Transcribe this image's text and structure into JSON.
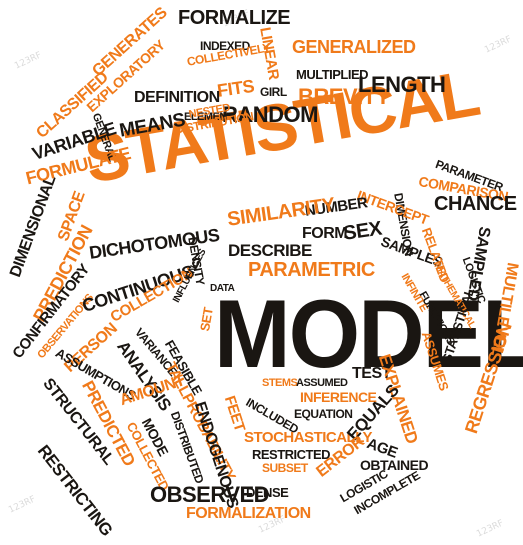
{
  "words": {
    "statistical": "STATISTICAL",
    "model": "MODEL",
    "formalize": "FORMALIZE",
    "indexed": "INDEXED",
    "collectively": "COLLECTIVELY",
    "generalized": "GENERALIZED",
    "multiplied": "MULTIPLIED",
    "linear": "LINEAR",
    "girl": "GIRL",
    "fits": "FITS",
    "length": "LENGTH",
    "brevity": "BREVITY",
    "random": "RANDOM",
    "definition": "DEFINITION",
    "element": "ELEMENT",
    "distribution": "DISTRIBUTION",
    "means": "MEANS",
    "nested": "NESTED",
    "general": "GENERAL",
    "classified": "CLASSIFIED",
    "generates": "GENERATES",
    "exploratory": "EXPLORATORY",
    "variable": "VARIABLE",
    "formulate": "FORMULATE",
    "parameter": "PARAMETER",
    "comparison": "COMPARISON",
    "chance": "CHANCE",
    "dimension": "DIMENSION",
    "intercept": "INTERCEPT",
    "number": "NUMBER",
    "similarity": "SIMILARITY",
    "form": "FORM",
    "sex": "SEX",
    "describe": "DESCRIBE",
    "parametric": "PARAMETRIC",
    "density": "DENSITY",
    "dichotomous": "DICHOTOMOUS",
    "samples": "SAMPLES",
    "related": "RELATED",
    "sampled": "SAMPLED",
    "multilevel": "MULTILEVEL",
    "mathematical": "MATHEMATICAL",
    "logistic_r": "LOGISTIC",
    "infinite": "INFINITE",
    "functions": "FUNCTIONS",
    "dimensional": "DIMENSIONAL",
    "space": "SPACE",
    "prediction": "PREDICTION",
    "confirmatory": "CONFIRMATORY",
    "observations": "OBSERVATIONS",
    "continuous": "CONTINUOUS",
    "collection": "COLLECTION",
    "influences": "INFLUENCES",
    "data": "DATA",
    "set": "SET",
    "person": "PERSON",
    "assumptions": "ASSUMPTIONS",
    "variance": "VARIANCE",
    "analysis": "ANALYSIS",
    "feasible": "FEASIBLE",
    "tallprobability": "TALLPROBABILITY",
    "structural": "STRUCTURAL",
    "predicted": "PREDICTED",
    "amount": "AMOUNT",
    "restricting": "RESTRICTING",
    "mode": "MODE",
    "collected": "COLLECTED",
    "distributed": "DISTRIBUTED",
    "endogenous": "ENDOGENOUS",
    "feet": "FEET",
    "stems": "STEMS",
    "assumed": "ASSUMED",
    "inference": "INFERENCE",
    "included": "INCLUDED",
    "equation": "EQUATION",
    "test": "TEST",
    "explained": "EXPLAINED",
    "assumes": "ASSUMES",
    "statistical_small": "STATISTICAL",
    "regression": "REGRESSION",
    "stochastically": "STOCHASTICALLY",
    "equals": "EQUALS",
    "age": "AGE",
    "restricted": "RESTRICTED",
    "subset": "SUBSET",
    "error": "ERROR",
    "obtained": "OBTAINED",
    "logistic": "LOGISTIC",
    "incomplete": "INCOMPLETE",
    "observed": "OBSERVED",
    "dense": "DENSE",
    "formalization": "FORMALIZATION"
  },
  "colors": {
    "orange": "#f07a1a",
    "dark": "#1a1612",
    "watermark": "#d7d7d7"
  },
  "watermarks": [
    "123RF",
    "123RF",
    "123RF",
    "123RF",
    "123RF",
    "123RF"
  ]
}
